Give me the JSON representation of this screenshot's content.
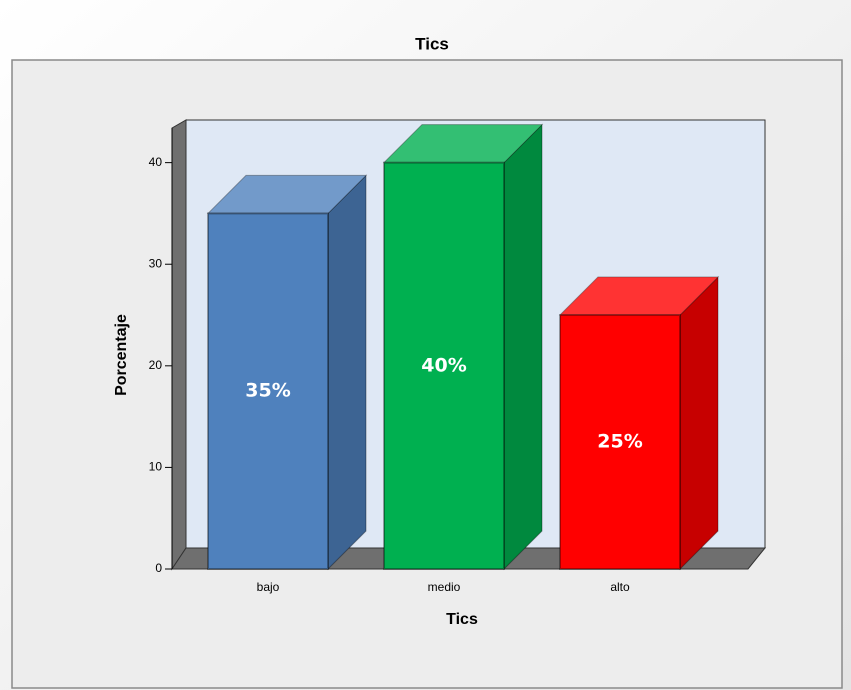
{
  "chart_data": {
    "type": "bar3d",
    "title": "Tics",
    "x_label": "Tics",
    "y_label": "Porcentaje",
    "categories": [
      "bajo",
      "medio",
      "alto"
    ],
    "values": [
      35,
      40,
      25
    ],
    "value_labels": [
      "35%",
      "40%",
      "25%"
    ],
    "colors": [
      "#4f81bd",
      "#00b050",
      "#ff0000"
    ],
    "ylim": [
      0,
      44
    ],
    "yticks": [
      0,
      10,
      20,
      30,
      40
    ],
    "grid": false
  }
}
